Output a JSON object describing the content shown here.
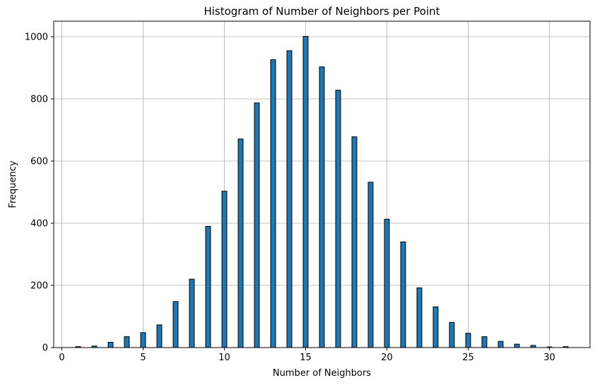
{
  "chart_data": {
    "type": "bar",
    "title": "Histogram of Number of Neighbors per Point",
    "xlabel": "Number of Neighbors",
    "ylabel": "Frequency",
    "xlim": [
      -0.5,
      32.5
    ],
    "ylim": [
      0,
      1050
    ],
    "x_ticks": [
      0,
      5,
      10,
      15,
      20,
      25,
      30
    ],
    "y_ticks": [
      0,
      200,
      400,
      600,
      800,
      1000
    ],
    "grid": true,
    "bar_width": 0.3,
    "bar_color": "#1f77b4",
    "edge_color": "#000000",
    "series": [
      {
        "x": [
          1,
          2,
          3,
          4,
          5,
          6,
          7,
          8,
          9,
          10,
          11,
          12,
          13,
          14,
          15,
          16,
          17,
          18,
          19,
          20,
          21,
          22,
          23,
          24,
          25,
          26,
          27,
          28,
          29,
          30,
          31
        ],
        "values": [
          3,
          5,
          17,
          35,
          48,
          73,
          148,
          220,
          390,
          503,
          671,
          787,
          926,
          955,
          1001,
          903,
          828,
          678,
          532,
          413,
          340,
          192,
          131,
          81,
          46,
          35,
          20,
          11,
          7,
          2,
          3
        ]
      }
    ]
  }
}
